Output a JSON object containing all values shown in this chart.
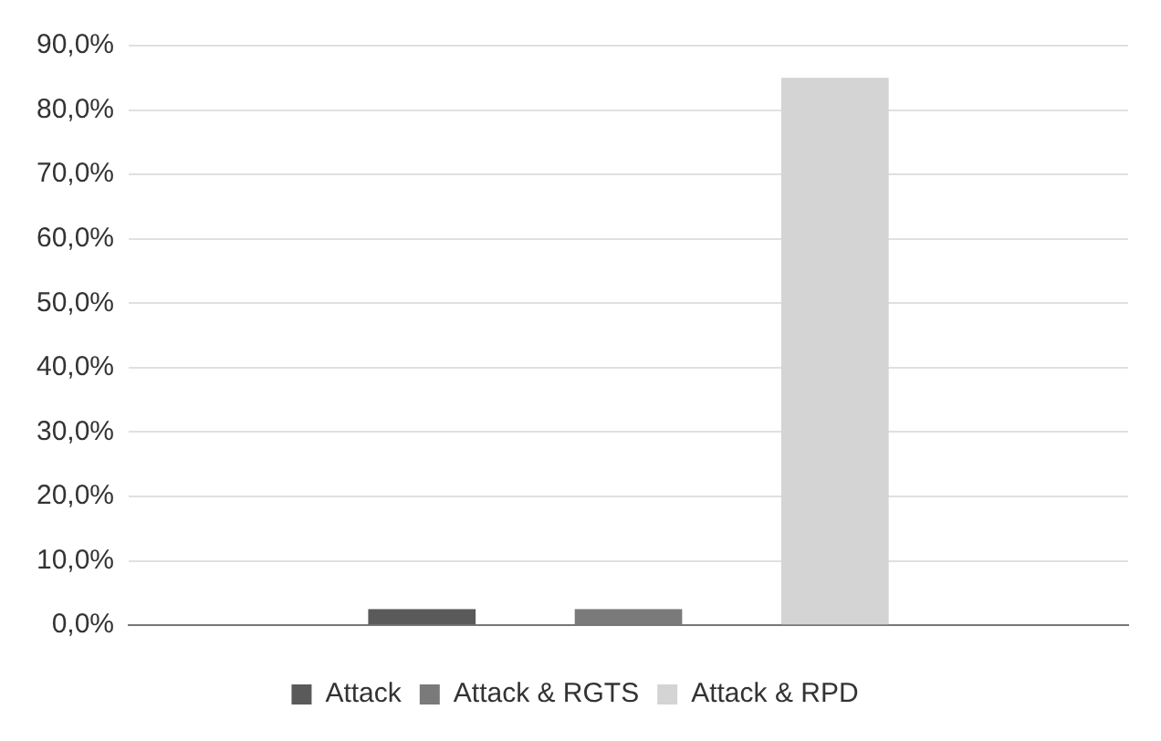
{
  "chart_data": {
    "type": "bar",
    "categories": [
      null
    ],
    "series": [
      {
        "name": "Attack",
        "color": "#5a5a5a",
        "values": [
          2.5
        ]
      },
      {
        "name": "Attack & RGTS",
        "color": "#7a7a7a",
        "values": [
          2.5
        ]
      },
      {
        "name": "Attack & RPD",
        "color": "#d4d4d4",
        "values": [
          85
        ]
      }
    ],
    "ylim": [
      0,
      90
    ],
    "yticks": [
      {
        "value": 0,
        "label": "0,0%"
      },
      {
        "value": 10,
        "label": "10,0%"
      },
      {
        "value": 20,
        "label": "20,0%"
      },
      {
        "value": 30,
        "label": "30,0%"
      },
      {
        "value": 40,
        "label": "40,0%"
      },
      {
        "value": 50,
        "label": "50,0%"
      },
      {
        "value": 60,
        "label": "60,0%"
      },
      {
        "value": 70,
        "label": "70,0%"
      },
      {
        "value": 80,
        "label": "80,0%"
      },
      {
        "value": 90,
        "label": "90,0%"
      }
    ],
    "grid": "y",
    "legend": "bottom"
  }
}
